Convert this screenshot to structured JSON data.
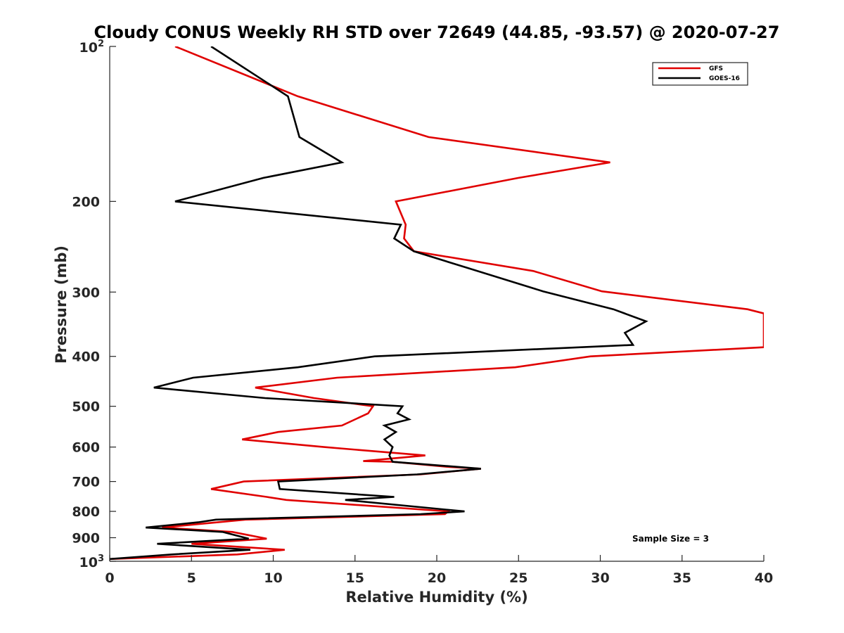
{
  "chart_data": {
    "type": "line",
    "title": "Cloudy CONUS Weekly RH STD over 72649 (44.85, -93.57) @ 2020-07-27",
    "xlabel": "Relative Humidity (%)",
    "ylabel": "Pressure (mb)",
    "xlim": [
      0,
      40
    ],
    "ylim": [
      100,
      1000
    ],
    "yscale": "log",
    "y_reversed": true,
    "grid": false,
    "legend_position": "top-right",
    "x_ticks": [
      "0",
      "5",
      "10",
      "15",
      "20",
      "25",
      "30",
      "35",
      "40"
    ],
    "x_tick_values": [
      0,
      5,
      10,
      15,
      20,
      25,
      30,
      35,
      40
    ],
    "y_ticks": [
      {
        "value": 200,
        "label": "200"
      },
      {
        "value": 300,
        "label": "300"
      },
      {
        "value": 400,
        "label": "400"
      },
      {
        "value": 500,
        "label": "500"
      },
      {
        "value": 600,
        "label": "600"
      },
      {
        "value": 700,
        "label": "700"
      },
      {
        "value": 800,
        "label": "800"
      },
      {
        "value": 900,
        "label": "900"
      }
    ],
    "y_power_ticks": [
      {
        "value": 100,
        "base": "10",
        "exp": "2"
      },
      {
        "value": 1000,
        "base": "10",
        "exp": "3"
      }
    ],
    "series": [
      {
        "name": "GFS",
        "color": "#e00000",
        "points": [
          [
            4.0,
            100
          ],
          [
            11.5,
            125
          ],
          [
            19.5,
            150
          ],
          [
            30.6,
            168
          ],
          [
            25.0,
            180
          ],
          [
            17.5,
            200
          ],
          [
            18.1,
            222
          ],
          [
            18.0,
            236
          ],
          [
            18.6,
            250
          ],
          [
            25.9,
            273
          ],
          [
            30.1,
            299
          ],
          [
            39.0,
            324
          ],
          [
            40.0,
            330
          ],
          [
            40.0,
            384
          ],
          [
            29.4,
            400
          ],
          [
            24.8,
            420
          ],
          [
            13.9,
            440
          ],
          [
            8.9,
            460
          ],
          [
            12.5,
            482
          ],
          [
            16.1,
            500
          ],
          [
            15.8,
            516
          ],
          [
            14.2,
            545
          ],
          [
            10.3,
            561
          ],
          [
            8.1,
            580
          ],
          [
            13.1,
            600
          ],
          [
            19.3,
            623
          ],
          [
            15.5,
            639
          ],
          [
            17.3,
            641
          ],
          [
            20.8,
            656
          ],
          [
            22.7,
            661
          ],
          [
            19.0,
            678
          ],
          [
            8.2,
            700
          ],
          [
            6.2,
            724
          ],
          [
            9.6,
            750
          ],
          [
            10.8,
            760
          ],
          [
            20.7,
            800
          ],
          [
            20.5,
            810
          ],
          [
            8.3,
            830
          ],
          [
            6.6,
            840
          ],
          [
            3.2,
            860
          ],
          [
            7.5,
            877
          ],
          [
            9.6,
            904
          ],
          [
            5.0,
            925
          ],
          [
            10.7,
            950
          ],
          [
            7.8,
            970
          ],
          [
            0.0,
            990
          ]
        ]
      },
      {
        "name": "GOES-16",
        "color": "#000000",
        "points": [
          [
            6.2,
            100
          ],
          [
            10.9,
            125
          ],
          [
            11.6,
            150
          ],
          [
            14.2,
            168
          ],
          [
            9.4,
            180
          ],
          [
            4.0,
            200
          ],
          [
            17.8,
            222
          ],
          [
            17.4,
            236
          ],
          [
            18.6,
            250
          ],
          [
            26.5,
            299
          ],
          [
            30.8,
            324
          ],
          [
            32.8,
            342
          ],
          [
            31.5,
            360
          ],
          [
            32.0,
            380
          ],
          [
            16.2,
            400
          ],
          [
            11.5,
            420
          ],
          [
            5.1,
            440
          ],
          [
            2.7,
            460
          ],
          [
            9.5,
            482
          ],
          [
            17.9,
            500
          ],
          [
            17.6,
            516
          ],
          [
            18.3,
            530
          ],
          [
            16.8,
            545
          ],
          [
            17.5,
            561
          ],
          [
            16.8,
            580
          ],
          [
            17.3,
            600
          ],
          [
            17.1,
            623
          ],
          [
            17.3,
            641
          ],
          [
            22.7,
            661
          ],
          [
            18.8,
            678
          ],
          [
            10.3,
            700
          ],
          [
            10.4,
            724
          ],
          [
            17.4,
            750
          ],
          [
            14.4,
            760
          ],
          [
            21.7,
            800
          ],
          [
            19.0,
            810
          ],
          [
            6.5,
            830
          ],
          [
            5.4,
            840
          ],
          [
            2.2,
            860
          ],
          [
            6.9,
            877
          ],
          [
            8.5,
            904
          ],
          [
            2.9,
            925
          ],
          [
            8.6,
            950
          ],
          [
            3.8,
            970
          ],
          [
            0.0,
            990
          ]
        ]
      }
    ],
    "annotations": [
      {
        "text": "Sample Size = 3",
        "x": 34.3,
        "y": 925
      }
    ]
  }
}
